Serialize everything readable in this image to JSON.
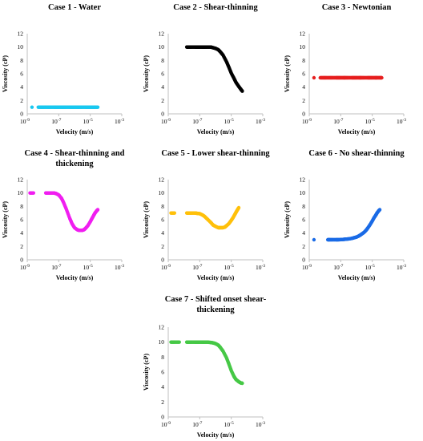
{
  "chart_data": [
    {
      "type": "scatter",
      "title": [
        "Case 1 - Water"
      ],
      "xlabel": "Velocity (m/s)",
      "ylabel": "Viscosity (cP)",
      "x_scale": "log",
      "xlim": [
        1e-09,
        0.001
      ],
      "ylim": [
        0,
        12
      ],
      "xticks": [
        "10",
        "10",
        "10",
        "10"
      ],
      "xtick_exponents": [
        "-9",
        "-7",
        "-5",
        "-3"
      ],
      "yticks": [
        "0",
        "2",
        "4",
        "6",
        "8",
        "10",
        "12"
      ],
      "grid": false,
      "color": "#19C8F0",
      "points": {
        "x": [
          2e-09,
          5e-09,
          8e-09,
          1.2e-08,
          2e-08,
          3e-08,
          5e-08,
          7e-08,
          1e-07,
          1.5e-07,
          2e-07,
          3e-07,
          5e-07,
          7e-07,
          1e-06,
          1.5e-06,
          2e-06,
          3e-06,
          5e-06,
          7e-06,
          1e-05,
          1.5e-05,
          2e-05,
          3e-05
        ],
        "y": [
          1,
          1,
          1,
          1,
          1,
          1,
          1,
          1,
          1,
          1,
          1,
          1,
          1,
          1,
          1,
          1,
          1,
          1,
          1,
          1,
          1,
          1,
          1,
          1
        ]
      }
    },
    {
      "type": "scatter",
      "title": [
        "Case 2 - Shear-thinning"
      ],
      "xlabel": "Velocity (m/s)",
      "ylabel": "Viscosity (cP)",
      "x_scale": "log",
      "xlim": [
        1e-09,
        0.001
      ],
      "ylim": [
        0,
        12
      ],
      "xticks": [
        "10",
        "10",
        "10",
        "10"
      ],
      "xtick_exponents": [
        "-9",
        "-7",
        "-5",
        "-3"
      ],
      "yticks": [
        "0",
        "2",
        "4",
        "6",
        "8",
        "10",
        "12"
      ],
      "grid": false,
      "color": "#000000",
      "points": {
        "x": [
          1.5e-08,
          2e-08,
          3e-08,
          5e-08,
          7e-08,
          1e-07,
          1.5e-07,
          2e-07,
          3e-07,
          5e-07,
          7e-07,
          1e-06,
          1.5e-06,
          2e-06,
          3e-06,
          5e-06,
          7e-06,
          1e-05,
          1.5e-05,
          2e-05,
          3e-05,
          4e-05,
          5e-05
        ],
        "y": [
          10,
          10,
          10,
          10,
          10,
          10,
          10,
          10,
          10,
          10,
          9.9,
          9.8,
          9.6,
          9.3,
          8.8,
          7.8,
          7,
          6.1,
          5.3,
          4.7,
          4.1,
          3.7,
          3.4
        ]
      }
    },
    {
      "type": "scatter",
      "title": [
        "Case 3 - Newtonian"
      ],
      "xlabel": "Velocity (m/s)",
      "ylabel": "Viscosity (cP)",
      "x_scale": "log",
      "xlim": [
        1e-09,
        0.001
      ],
      "ylim": [
        0,
        12
      ],
      "xticks": [
        "10",
        "10",
        "10",
        "10"
      ],
      "xtick_exponents": [
        "-9",
        "-7",
        "-5",
        "-3"
      ],
      "yticks": [
        "0",
        "2",
        "4",
        "6",
        "8",
        "10",
        "12"
      ],
      "grid": false,
      "color": "#E61E1E",
      "points": {
        "x": [
          2e-09,
          5e-09,
          8e-09,
          1.2e-08,
          2e-08,
          3e-08,
          5e-08,
          7e-08,
          1e-07,
          1.5e-07,
          2e-07,
          3e-07,
          5e-07,
          7e-07,
          1e-06,
          1.5e-06,
          2e-06,
          3e-06,
          5e-06,
          7e-06,
          1e-05,
          1.5e-05,
          2e-05,
          3e-05,
          4e-05
        ],
        "y": [
          5.4,
          5.4,
          5.4,
          5.4,
          5.4,
          5.4,
          5.4,
          5.4,
          5.4,
          5.4,
          5.4,
          5.4,
          5.4,
          5.4,
          5.4,
          5.4,
          5.4,
          5.4,
          5.4,
          5.4,
          5.4,
          5.4,
          5.4,
          5.4,
          5.4
        ]
      }
    },
    {
      "type": "scatter",
      "title": [
        "Case 4 - Shear-thinning and",
        "thickening"
      ],
      "xlabel": "Velocity (m/s)",
      "ylabel": "Viscosity (cP)",
      "x_scale": "log",
      "xlim": [
        1e-09,
        0.001
      ],
      "ylim": [
        0,
        12
      ],
      "xticks": [
        "10",
        "10",
        "10",
        "10"
      ],
      "xtick_exponents": [
        "-9",
        "-7",
        "-5",
        "-3"
      ],
      "yticks": [
        "0",
        "2",
        "4",
        "6",
        "8",
        "10",
        "12"
      ],
      "grid": false,
      "color": "#F01EF0",
      "points": {
        "x": [
          1.5e-09,
          2.5e-09,
          1.5e-08,
          2e-08,
          3e-08,
          5e-08,
          7e-08,
          1e-07,
          1.5e-07,
          2e-07,
          3e-07,
          5e-07,
          7e-07,
          1e-06,
          1.5e-06,
          2e-06,
          3e-06,
          4e-06,
          5e-06,
          7e-06,
          1e-05,
          1.3e-05,
          1.7e-05,
          2e-05,
          2.5e-05,
          3e-05
        ],
        "y": [
          10,
          10,
          10,
          10,
          10,
          10,
          9.9,
          9.7,
          9.2,
          8.6,
          7.6,
          6.2,
          5.4,
          4.8,
          4.5,
          4.4,
          4.4,
          4.5,
          4.7,
          5.1,
          5.7,
          6.2,
          6.7,
          7,
          7.3,
          7.5
        ]
      }
    },
    {
      "type": "scatter",
      "title": [
        "Case 5 - Lower shear-thinning"
      ],
      "xlabel": "Velocity (m/s)",
      "ylabel": "Viscosity (cP)",
      "x_scale": "log",
      "xlim": [
        1e-09,
        0.001
      ],
      "ylim": [
        0,
        12
      ],
      "xticks": [
        "10",
        "10",
        "10",
        "10"
      ],
      "xtick_exponents": [
        "-9",
        "-7",
        "-5",
        "-3"
      ],
      "yticks": [
        "0",
        "2",
        "4",
        "6",
        "8",
        "10",
        "12"
      ],
      "grid": false,
      "color": "#FFC00A",
      "points": {
        "x": [
          1.5e-09,
          2.5e-09,
          1.5e-08,
          2e-08,
          3e-08,
          5e-08,
          7e-08,
          1e-07,
          1.5e-07,
          2e-07,
          3e-07,
          5e-07,
          7e-07,
          1e-06,
          1.5e-06,
          2e-06,
          3e-06,
          4e-06,
          5e-06,
          7e-06,
          1e-05,
          1.3e-05,
          1.7e-05,
          2e-05,
          2.5e-05,
          3e-05
        ],
        "y": [
          7,
          7,
          7,
          7,
          7,
          7,
          6.95,
          6.9,
          6.7,
          6.5,
          6.1,
          5.6,
          5.2,
          5,
          4.8,
          4.8,
          4.8,
          4.9,
          5.1,
          5.4,
          5.9,
          6.3,
          6.8,
          7.1,
          7.5,
          7.8
        ]
      }
    },
    {
      "type": "scatter",
      "title": [
        "Case 6 - No shear-thinning"
      ],
      "xlabel": "Velocity (m/s)",
      "ylabel": "Viscosity (cP)",
      "x_scale": "log",
      "xlim": [
        1e-09,
        0.001
      ],
      "ylim": [
        0,
        12
      ],
      "xticks": [
        "10",
        "10",
        "10",
        "10"
      ],
      "xtick_exponents": [
        "-9",
        "-7",
        "-5",
        "-3"
      ],
      "yticks": [
        "0",
        "2",
        "4",
        "6",
        "8",
        "10",
        "12"
      ],
      "grid": false,
      "color": "#1A6BE6",
      "points": {
        "x": [
          2e-09,
          1.5e-08,
          2e-08,
          3e-08,
          5e-08,
          7e-08,
          1e-07,
          1.5e-07,
          2e-07,
          3e-07,
          5e-07,
          7e-07,
          1e-06,
          1.5e-06,
          2e-06,
          3e-06,
          4e-06,
          5e-06,
          7e-06,
          1e-05,
          1.3e-05,
          1.7e-05,
          2e-05,
          2.5e-05,
          3e-05
        ],
        "y": [
          3,
          3,
          3,
          3,
          3,
          3,
          3.02,
          3.05,
          3.08,
          3.12,
          3.2,
          3.3,
          3.4,
          3.6,
          3.8,
          4.1,
          4.4,
          4.7,
          5.2,
          5.8,
          6.3,
          6.7,
          7,
          7.3,
          7.5
        ]
      }
    },
    {
      "type": "scatter",
      "title": [
        "Case 7 - Shifted onset shear-",
        "thickening"
      ],
      "xlabel": "Velocity (m/s)",
      "ylabel": "Viscosity (cP)",
      "x_scale": "log",
      "xlim": [
        1e-09,
        0.001
      ],
      "ylim": [
        0,
        12
      ],
      "xticks": [
        "10",
        "10",
        "10",
        "10"
      ],
      "xtick_exponents": [
        "-9",
        "-7",
        "-5",
        "-3"
      ],
      "yticks": [
        "0",
        "2",
        "4",
        "6",
        "8",
        "10",
        "12"
      ],
      "grid": false,
      "color": "#46C846",
      "points": {
        "x": [
          1.5e-09,
          2.5e-09,
          5e-09,
          1.5e-08,
          2e-08,
          3e-08,
          5e-08,
          7e-08,
          1e-07,
          1.5e-07,
          2e-07,
          3e-07,
          5e-07,
          7e-07,
          1e-06,
          1.5e-06,
          2e-06,
          3e-06,
          5e-06,
          7e-06,
          1e-05,
          1.5e-05,
          2e-05,
          3e-05,
          4e-05,
          5e-05
        ],
        "y": [
          10,
          10,
          10,
          10,
          10,
          10,
          10,
          10,
          10,
          10,
          10,
          10,
          9.95,
          9.9,
          9.8,
          9.6,
          9.3,
          8.8,
          7.9,
          7.1,
          6.2,
          5.4,
          5,
          4.7,
          4.55,
          4.5
        ]
      }
    }
  ]
}
